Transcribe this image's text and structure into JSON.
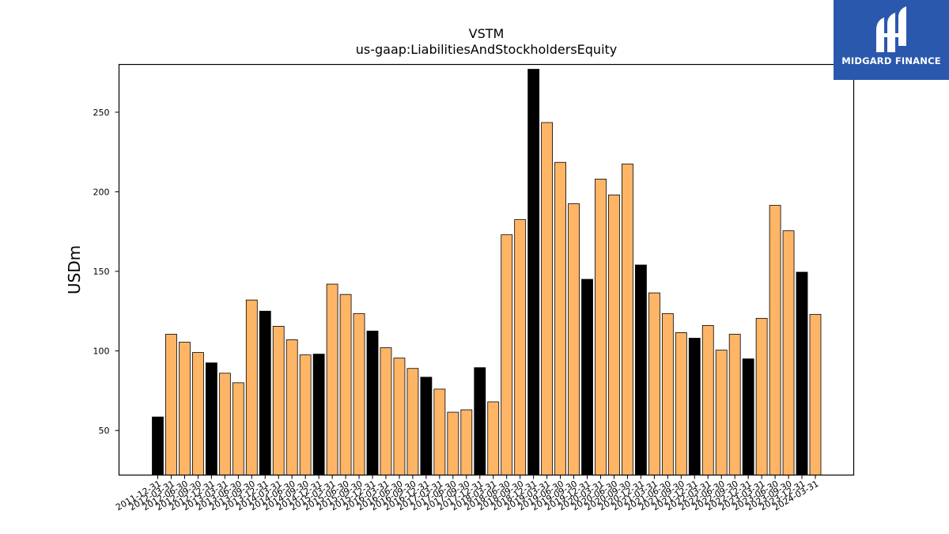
{
  "chart_data": {
    "type": "bar",
    "title": "VSTM",
    "subtitle": "us-gaap:LiabilitiesAndStockholdersEquity",
    "xlabel": "",
    "ylabel": "USDm",
    "ylim": [
      22,
      280
    ],
    "yticks": [
      50,
      100,
      150,
      200,
      250
    ],
    "grid": false,
    "colors": {
      "quarter": "#ffb566",
      "year_end": "#000000",
      "edge": "#000000"
    },
    "categories": [
      "2011-12-31",
      "2012-03-31",
      "2012-06-30",
      "2012-09-30",
      "2012-12-31",
      "2013-03-31",
      "2013-06-30",
      "2013-09-30",
      "2013-12-31",
      "2014-03-31",
      "2014-06-30",
      "2014-09-30",
      "2014-12-31",
      "2015-03-31",
      "2015-06-30",
      "2015-09-30",
      "2015-12-31",
      "2016-03-31",
      "2016-06-30",
      "2016-09-30",
      "2016-12-31",
      "2017-03-31",
      "2017-06-30",
      "2017-09-30",
      "2017-12-31",
      "2018-03-31",
      "2018-06-30",
      "2018-09-30",
      "2018-12-31",
      "2019-03-31",
      "2019-06-30",
      "2019-09-30",
      "2019-12-31",
      "2020-03-31",
      "2020-06-30",
      "2020-09-30",
      "2020-12-31",
      "2021-03-31",
      "2021-06-30",
      "2021-09-30",
      "2021-12-31",
      "2022-03-31",
      "2022-06-30",
      "2022-09-30",
      "2022-12-31",
      "2023-03-31",
      "2023-06-30",
      "2023-09-30",
      "2023-12-31",
      "2024-03-31"
    ],
    "values": [
      58.5,
      110.5,
      105.5,
      99,
      92.5,
      86,
      80,
      132,
      125,
      115.5,
      107,
      97.5,
      98,
      142,
      135.5,
      123.5,
      112.5,
      102,
      95.5,
      89,
      83.5,
      76,
      61.5,
      63,
      89.5,
      68,
      173,
      182.5,
      277,
      243.5,
      218.5,
      192.5,
      145,
      208,
      198,
      217.5,
      154,
      136.5,
      123.5,
      111.5,
      108,
      116,
      100.5,
      110.5,
      95,
      120.5,
      191.5,
      175.5,
      149.5,
      123
    ],
    "year_end": [
      true,
      false,
      false,
      false,
      true,
      false,
      false,
      false,
      true,
      false,
      false,
      false,
      true,
      false,
      false,
      false,
      true,
      false,
      false,
      false,
      true,
      false,
      false,
      false,
      true,
      false,
      false,
      false,
      true,
      false,
      false,
      false,
      true,
      false,
      false,
      false,
      true,
      false,
      false,
      false,
      true,
      false,
      false,
      false,
      true,
      false,
      false,
      false,
      true,
      false
    ]
  },
  "logo": {
    "text": "MIDGARD FINANCE",
    "mark": "midgard-logo-icon"
  }
}
